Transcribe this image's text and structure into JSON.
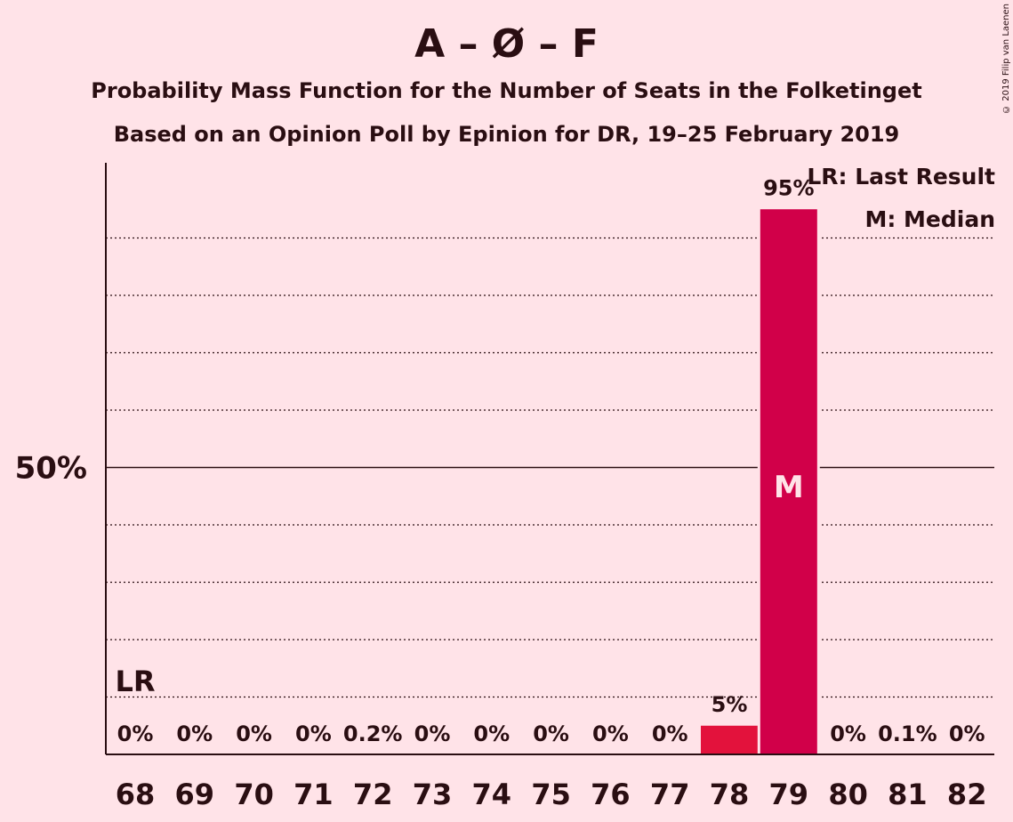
{
  "header": {
    "title": "A – Ø – F",
    "subtitle1": "Probability Mass Function for the Number of Seats in the Folketinget",
    "subtitle2": "Based on an Opinion Poll by Epinion for DR, 19–25 February 2019",
    "copyright": "© 2019 Filip van Laenen"
  },
  "legend": {
    "lr": "LR: Last Result",
    "median": "M: Median"
  },
  "chart_data": {
    "type": "bar",
    "categories": [
      "68",
      "69",
      "70",
      "71",
      "72",
      "73",
      "74",
      "75",
      "76",
      "77",
      "78",
      "79",
      "80",
      "81",
      "82"
    ],
    "values": [
      0,
      0,
      0,
      0,
      0.2,
      0,
      0,
      0,
      0,
      0,
      5,
      95,
      0,
      0.1,
      0
    ],
    "value_labels": [
      "0%",
      "0%",
      "0%",
      "0%",
      "0.2%",
      "0%",
      "0%",
      "0%",
      "0%",
      "0%",
      "5%",
      "95%",
      "0%",
      "0.1%",
      "0%"
    ],
    "ylim": [
      0,
      100
    ],
    "yticks": [
      {
        "value": 50,
        "label": "50%"
      }
    ],
    "minor_gridlines": [
      10,
      20,
      30,
      40,
      60,
      70,
      80,
      90
    ],
    "last_result": {
      "category": "68",
      "label": "LR"
    },
    "median": {
      "category": "79",
      "label": "M"
    },
    "colors": {
      "background": "#FFE3E8",
      "bar_main": "#D10049",
      "bar_alt": "#E3123C",
      "text": "#2a0e12"
    }
  }
}
